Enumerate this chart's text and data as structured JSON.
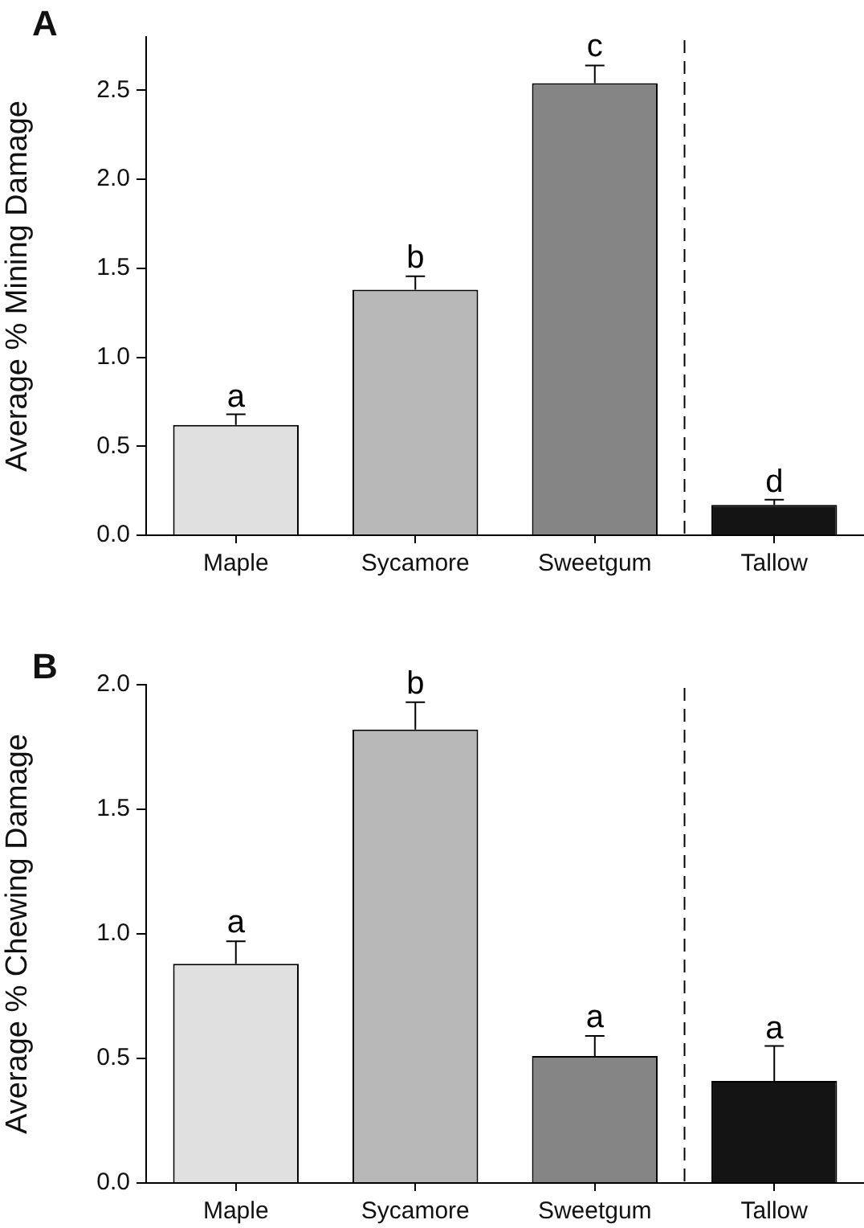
{
  "chart_data": [
    {
      "type": "bar",
      "title": "A",
      "ylabel": "Average % Mining Damage",
      "categories": [
        "Maple",
        "Sycamore",
        "Sweetgum",
        "Tallow"
      ],
      "values": [
        0.62,
        1.38,
        2.54,
        0.17
      ],
      "colors": [
        "#e0e0e0",
        "#b8b8b8",
        "#858585",
        "#141414"
      ],
      "errors": [
        0.06,
        0.075,
        0.1,
        0.03
      ],
      "ylim": [
        0,
        2.8
      ],
      "yticks": [
        {
          "value": 0,
          "label": "0.0"
        },
        0.5,
        {
          "value": 1,
          "label": "1.0"
        },
        1.5,
        {
          "value": 2,
          "label": "2.0"
        },
        2.5
      ],
      "annotations": [
        {
          "text": "a",
          "x": "Maple",
          "y": 0.675
        },
        {
          "text": "b",
          "x": "Sycamore",
          "y": 1.455
        },
        {
          "text": "c",
          "x": "Sweetgum",
          "y": 2.64
        },
        {
          "text": "d",
          "x": "Tallow",
          "y": 0.195
        }
      ]
    },
    {
      "type": "bar",
      "title": "B",
      "ylabel": "Average % Chewing Damage",
      "categories": [
        "Maple",
        "Sycamore",
        "Sweetgum",
        "Tallow"
      ],
      "values": [
        0.88,
        1.82,
        0.51,
        0.41
      ],
      "colors": [
        "#e0e0e0",
        "#b8b8b8",
        "#858585",
        "#141414"
      ],
      "errors": [
        0.09,
        0.11,
        0.08,
        0.14
      ],
      "ylim": [
        0,
        2.0
      ],
      "yticks": [
        {
          "value": 0,
          "label": "0.0"
        },
        0.5,
        {
          "value": 1,
          "label": "1.0"
        },
        1.5,
        {
          "value": 2,
          "label": "2.0"
        }
      ],
      "annotations": [
        {
          "text": "a",
          "x": "Maple",
          "y": 0.97
        },
        {
          "text": "b",
          "x": "Sycamore",
          "y": 1.93
        },
        {
          "text": "a",
          "x": "Sweetgum",
          "y": 0.59
        },
        {
          "text": "a",
          "x": "Tallow",
          "y": 0.545
        }
      ]
    }
  ]
}
